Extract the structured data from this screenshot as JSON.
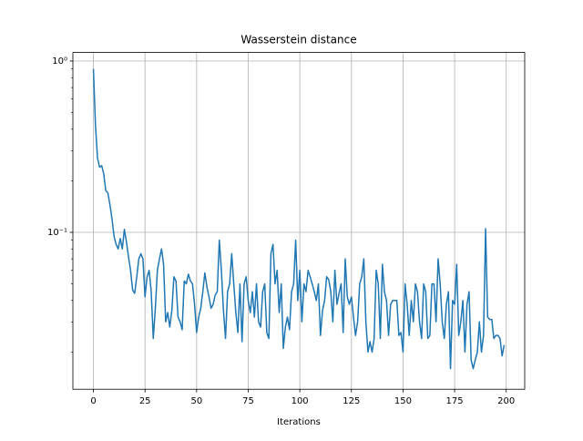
{
  "chart_data": {
    "type": "line",
    "title": "Wasserstein distance",
    "xlabel": "Iterations",
    "log_y": true,
    "grid": true,
    "xlim": [
      -9.95,
      208.95
    ],
    "ylim": [
      0.01213,
      1.122
    ],
    "xticks": [
      0,
      25,
      50,
      75,
      100,
      125,
      150,
      175,
      200
    ],
    "yticks": [
      {
        "value": 0.1,
        "label": "10⁻¹"
      },
      {
        "value": 1,
        "label": "10⁰"
      }
    ],
    "yminorticks": [
      0.02,
      0.03,
      0.04,
      0.05,
      0.06,
      0.07,
      0.08,
      0.09,
      0.2,
      0.3,
      0.4,
      0.5,
      0.6,
      0.7,
      0.8,
      0.9
    ],
    "x": [
      0,
      1,
      2,
      3,
      4,
      5,
      6,
      7,
      8,
      9,
      10,
      11,
      12,
      13,
      14,
      15,
      16,
      17,
      18,
      19,
      20,
      21,
      22,
      23,
      24,
      25,
      26,
      27,
      28,
      29,
      30,
      31,
      32,
      33,
      34,
      35,
      36,
      37,
      38,
      39,
      40,
      41,
      42,
      43,
      44,
      45,
      46,
      47,
      48,
      49,
      50,
      51,
      52,
      53,
      54,
      55,
      56,
      57,
      58,
      59,
      60,
      61,
      62,
      63,
      64,
      65,
      66,
      67,
      68,
      69,
      70,
      71,
      72,
      73,
      74,
      75,
      76,
      77,
      78,
      79,
      80,
      81,
      82,
      83,
      84,
      85,
      86,
      87,
      88,
      89,
      90,
      91,
      92,
      93,
      94,
      95,
      96,
      97,
      98,
      99,
      100,
      101,
      102,
      103,
      104,
      105,
      106,
      107,
      108,
      109,
      110,
      111,
      112,
      113,
      114,
      115,
      116,
      117,
      118,
      119,
      120,
      121,
      122,
      123,
      124,
      125,
      126,
      127,
      128,
      129,
      130,
      131,
      132,
      133,
      134,
      135,
      136,
      137,
      138,
      139,
      140,
      141,
      142,
      143,
      144,
      145,
      146,
      147,
      148,
      149,
      150,
      151,
      152,
      153,
      154,
      155,
      156,
      157,
      158,
      159,
      160,
      161,
      162,
      163,
      164,
      165,
      166,
      167,
      168,
      169,
      170,
      171,
      172,
      173,
      174,
      175,
      176,
      177,
      178,
      179,
      180,
      181,
      182,
      183,
      184,
      185,
      186,
      187,
      188,
      189,
      190,
      191,
      192,
      193,
      194,
      195,
      196,
      197,
      198,
      199
    ],
    "series": [
      {
        "color": "#1f77b4",
        "values": [
          0.9,
          0.42,
          0.27,
          0.24,
          0.245,
          0.22,
          0.175,
          0.17,
          0.145,
          0.12,
          0.095,
          0.085,
          0.08,
          0.092,
          0.08,
          0.104,
          0.088,
          0.072,
          0.06,
          0.046,
          0.044,
          0.055,
          0.07,
          0.075,
          0.07,
          0.042,
          0.055,
          0.06,
          0.045,
          0.024,
          0.036,
          0.06,
          0.07,
          0.08,
          0.065,
          0.03,
          0.034,
          0.028,
          0.035,
          0.055,
          0.052,
          0.032,
          0.03,
          0.027,
          0.052,
          0.05,
          0.057,
          0.052,
          0.05,
          0.038,
          0.026,
          0.032,
          0.036,
          0.045,
          0.058,
          0.048,
          0.042,
          0.036,
          0.038,
          0.043,
          0.045,
          0.09,
          0.06,
          0.035,
          0.024,
          0.045,
          0.05,
          0.075,
          0.05,
          0.034,
          0.026,
          0.05,
          0.023,
          0.05,
          0.055,
          0.04,
          0.034,
          0.045,
          0.032,
          0.05,
          0.03,
          0.028,
          0.045,
          0.05,
          0.026,
          0.024,
          0.075,
          0.085,
          0.05,
          0.06,
          0.034,
          0.05,
          0.021,
          0.028,
          0.032,
          0.027,
          0.045,
          0.05,
          0.09,
          0.04,
          0.06,
          0.03,
          0.05,
          0.045,
          0.06,
          0.055,
          0.05,
          0.045,
          0.04,
          0.05,
          0.025,
          0.035,
          0.04,
          0.055,
          0.053,
          0.045,
          0.03,
          0.06,
          0.038,
          0.044,
          0.05,
          0.026,
          0.07,
          0.042,
          0.038,
          0.042,
          0.032,
          0.025,
          0.03,
          0.05,
          0.055,
          0.07,
          0.03,
          0.02,
          0.023,
          0.02,
          0.024,
          0.06,
          0.05,
          0.024,
          0.065,
          0.045,
          0.04,
          0.025,
          0.038,
          0.04,
          0.04,
          0.04,
          0.025,
          0.026,
          0.02,
          0.05,
          0.038,
          0.025,
          0.04,
          0.03,
          0.05,
          0.045,
          0.03,
          0.024,
          0.05,
          0.045,
          0.024,
          0.025,
          0.05,
          0.05,
          0.03,
          0.07,
          0.05,
          0.03,
          0.024,
          0.038,
          0.045,
          0.016,
          0.04,
          0.038,
          0.065,
          0.025,
          0.03,
          0.04,
          0.02,
          0.038,
          0.045,
          0.018,
          0.016,
          0.018,
          0.02,
          0.03,
          0.02,
          0.025,
          0.105,
          0.032,
          0.031,
          0.031,
          0.024,
          0.025,
          0.025,
          0.024,
          0.019,
          0.022
        ]
      }
    ]
  }
}
